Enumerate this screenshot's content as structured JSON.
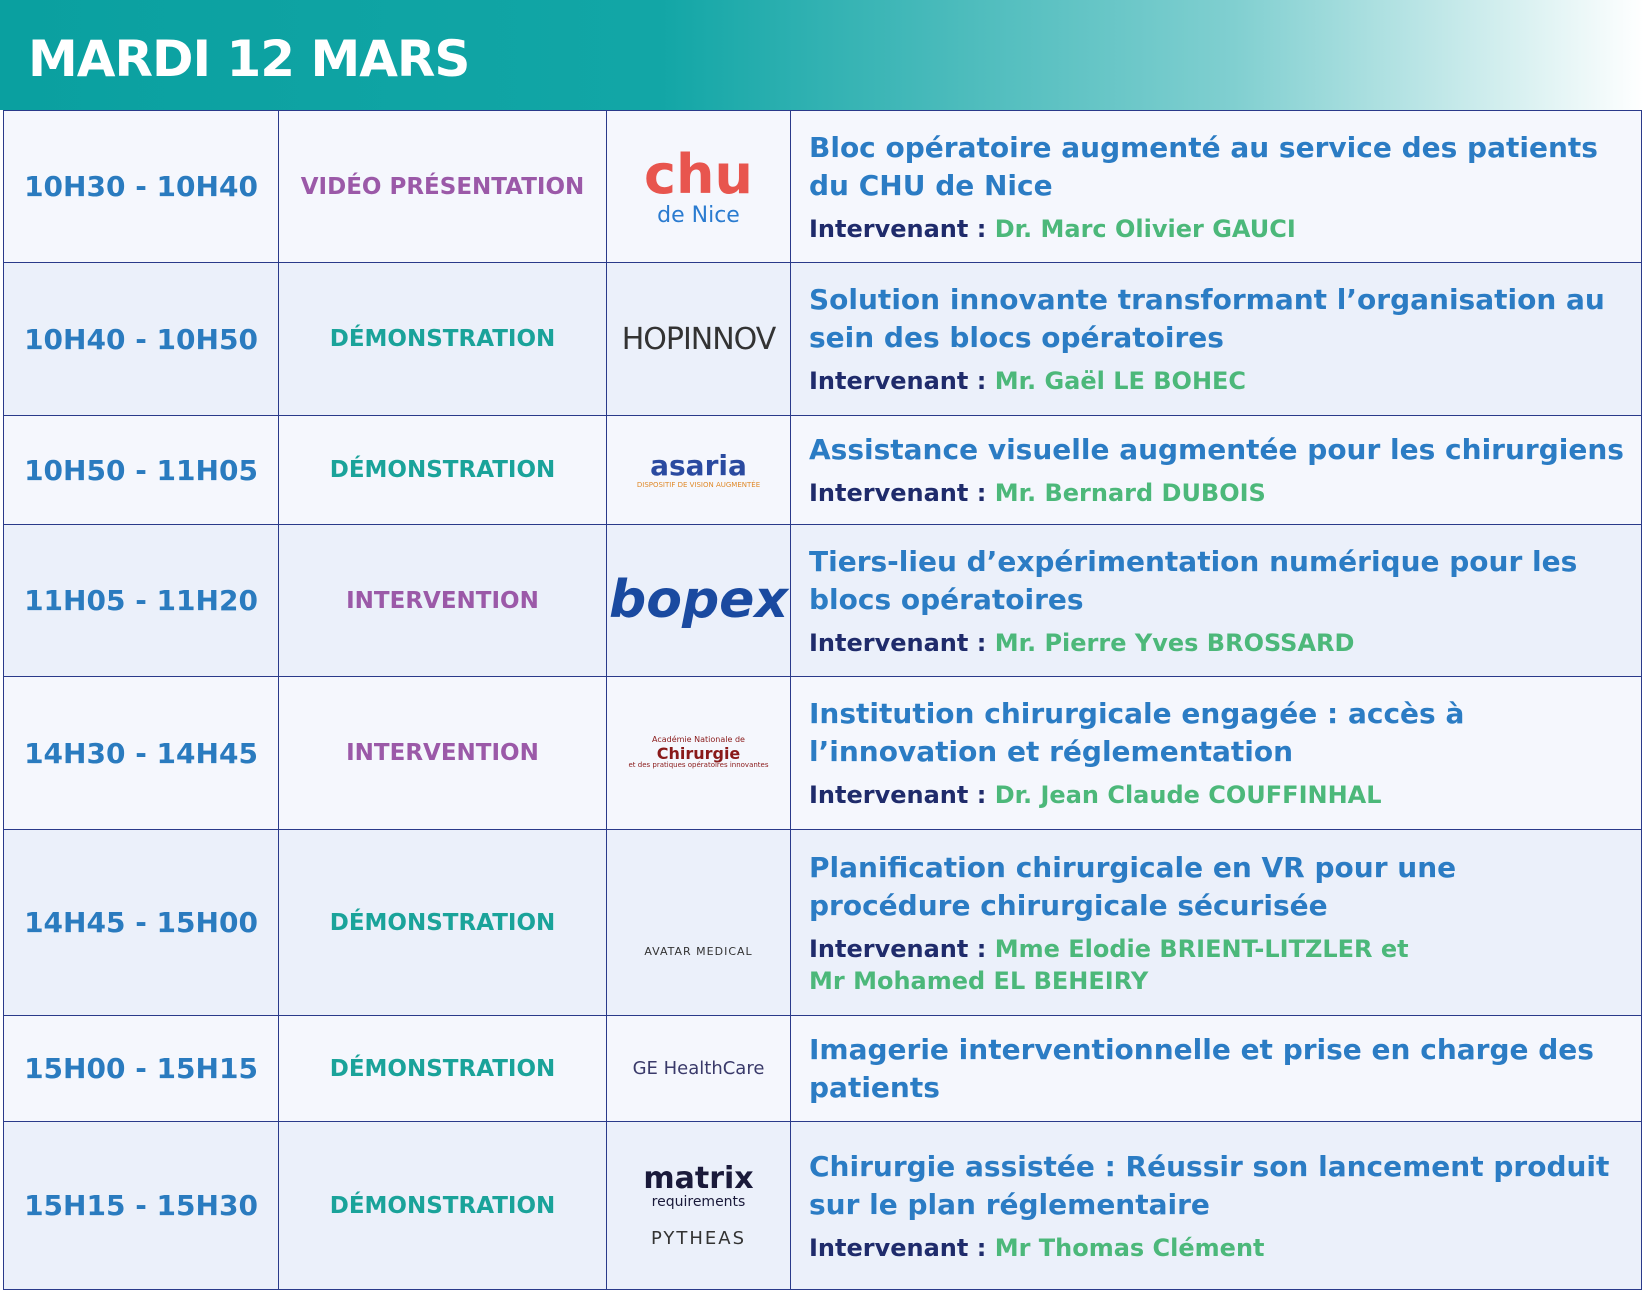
{
  "header": {
    "title": "MARDI 12 MARS"
  },
  "speaker_label": "Intervenant :",
  "type_colors": {
    "purple": "#9b59a8",
    "teal": "#1aa39a"
  },
  "rows": [
    {
      "time": "10H30 - 10H40",
      "type": "VIDÉO PRÉSENTATION",
      "type_color": "#9b59a8",
      "logo": [
        "chu",
        "de Nice"
      ],
      "title": "Bloc opératoire augmenté au service des patients du CHU de Nice",
      "speaker": [
        "Dr. Marc Olivier GAUCI"
      ]
    },
    {
      "time": "10H40 - 10H50",
      "type": "DÉMONSTRATION",
      "type_color": "#1aa39a",
      "logo": [
        "HOPINNOV"
      ],
      "title": "Solution innovante transformant l’organisation au sein des blocs opératoires",
      "speaker": [
        "Mr. Gaël LE BOHEC"
      ]
    },
    {
      "time": "10H50 - 11H05",
      "type": "DÉMONSTRATION",
      "type_color": "#1aa39a",
      "logo": [
        "asaria",
        "DISPOSITIF DE VISION AUGMENTÉE"
      ],
      "title": "Assistance visuelle augmentée pour les chirurgiens",
      "speaker": [
        "Mr. Bernard DUBOIS"
      ]
    },
    {
      "time": "11H05 - 11H20",
      "type": "INTERVENTION",
      "type_color": "#9b59a8",
      "logo": [
        "bopex"
      ],
      "title": "Tiers-lieu d’expérimentation numérique pour les blocs opératoires",
      "speaker": [
        "Mr. Pierre Yves BROSSARD"
      ]
    },
    {
      "time": "14H30 - 14H45",
      "type": "INTERVENTION",
      "type_color": "#9b59a8",
      "logo": [
        "Académie Nationale de",
        "Chirurgie",
        "et des pratiques opératoires innovantes"
      ],
      "title": "Institution chirurgicale engagée : accès à l’innovation et réglementation",
      "speaker": [
        "Dr. Jean Claude COUFFINHAL"
      ]
    },
    {
      "time": "14H45 - 15H00",
      "type": "DÉMONSTRATION",
      "type_color": "#1aa39a",
      "logo": [
        "AVATAR MEDICAL"
      ],
      "title": "Planification chirurgicale en VR pour une procédure chirurgicale sécurisée",
      "speaker": [
        "Mme Elodie BRIENT-LITZLER et",
        "Mr Mohamed EL BEHEIRY"
      ]
    },
    {
      "time": "15H00 - 15H15",
      "type": "DÉMONSTRATION",
      "type_color": "#1aa39a",
      "logo": [
        "GE HealthCare"
      ],
      "title": "Imagerie interventionnelle et prise en charge des patients",
      "speaker": []
    },
    {
      "time": "15H15 - 15H30",
      "type": "DÉMONSTRATION",
      "type_color": "#1aa39a",
      "logo": [
        "matrix",
        "requirements",
        "PYTHEAS"
      ],
      "title": "Chirurgie assistée : Réussir son lancement produit sur le plan réglementaire",
      "speaker": [
        "Mr Thomas Clément"
      ]
    }
  ]
}
